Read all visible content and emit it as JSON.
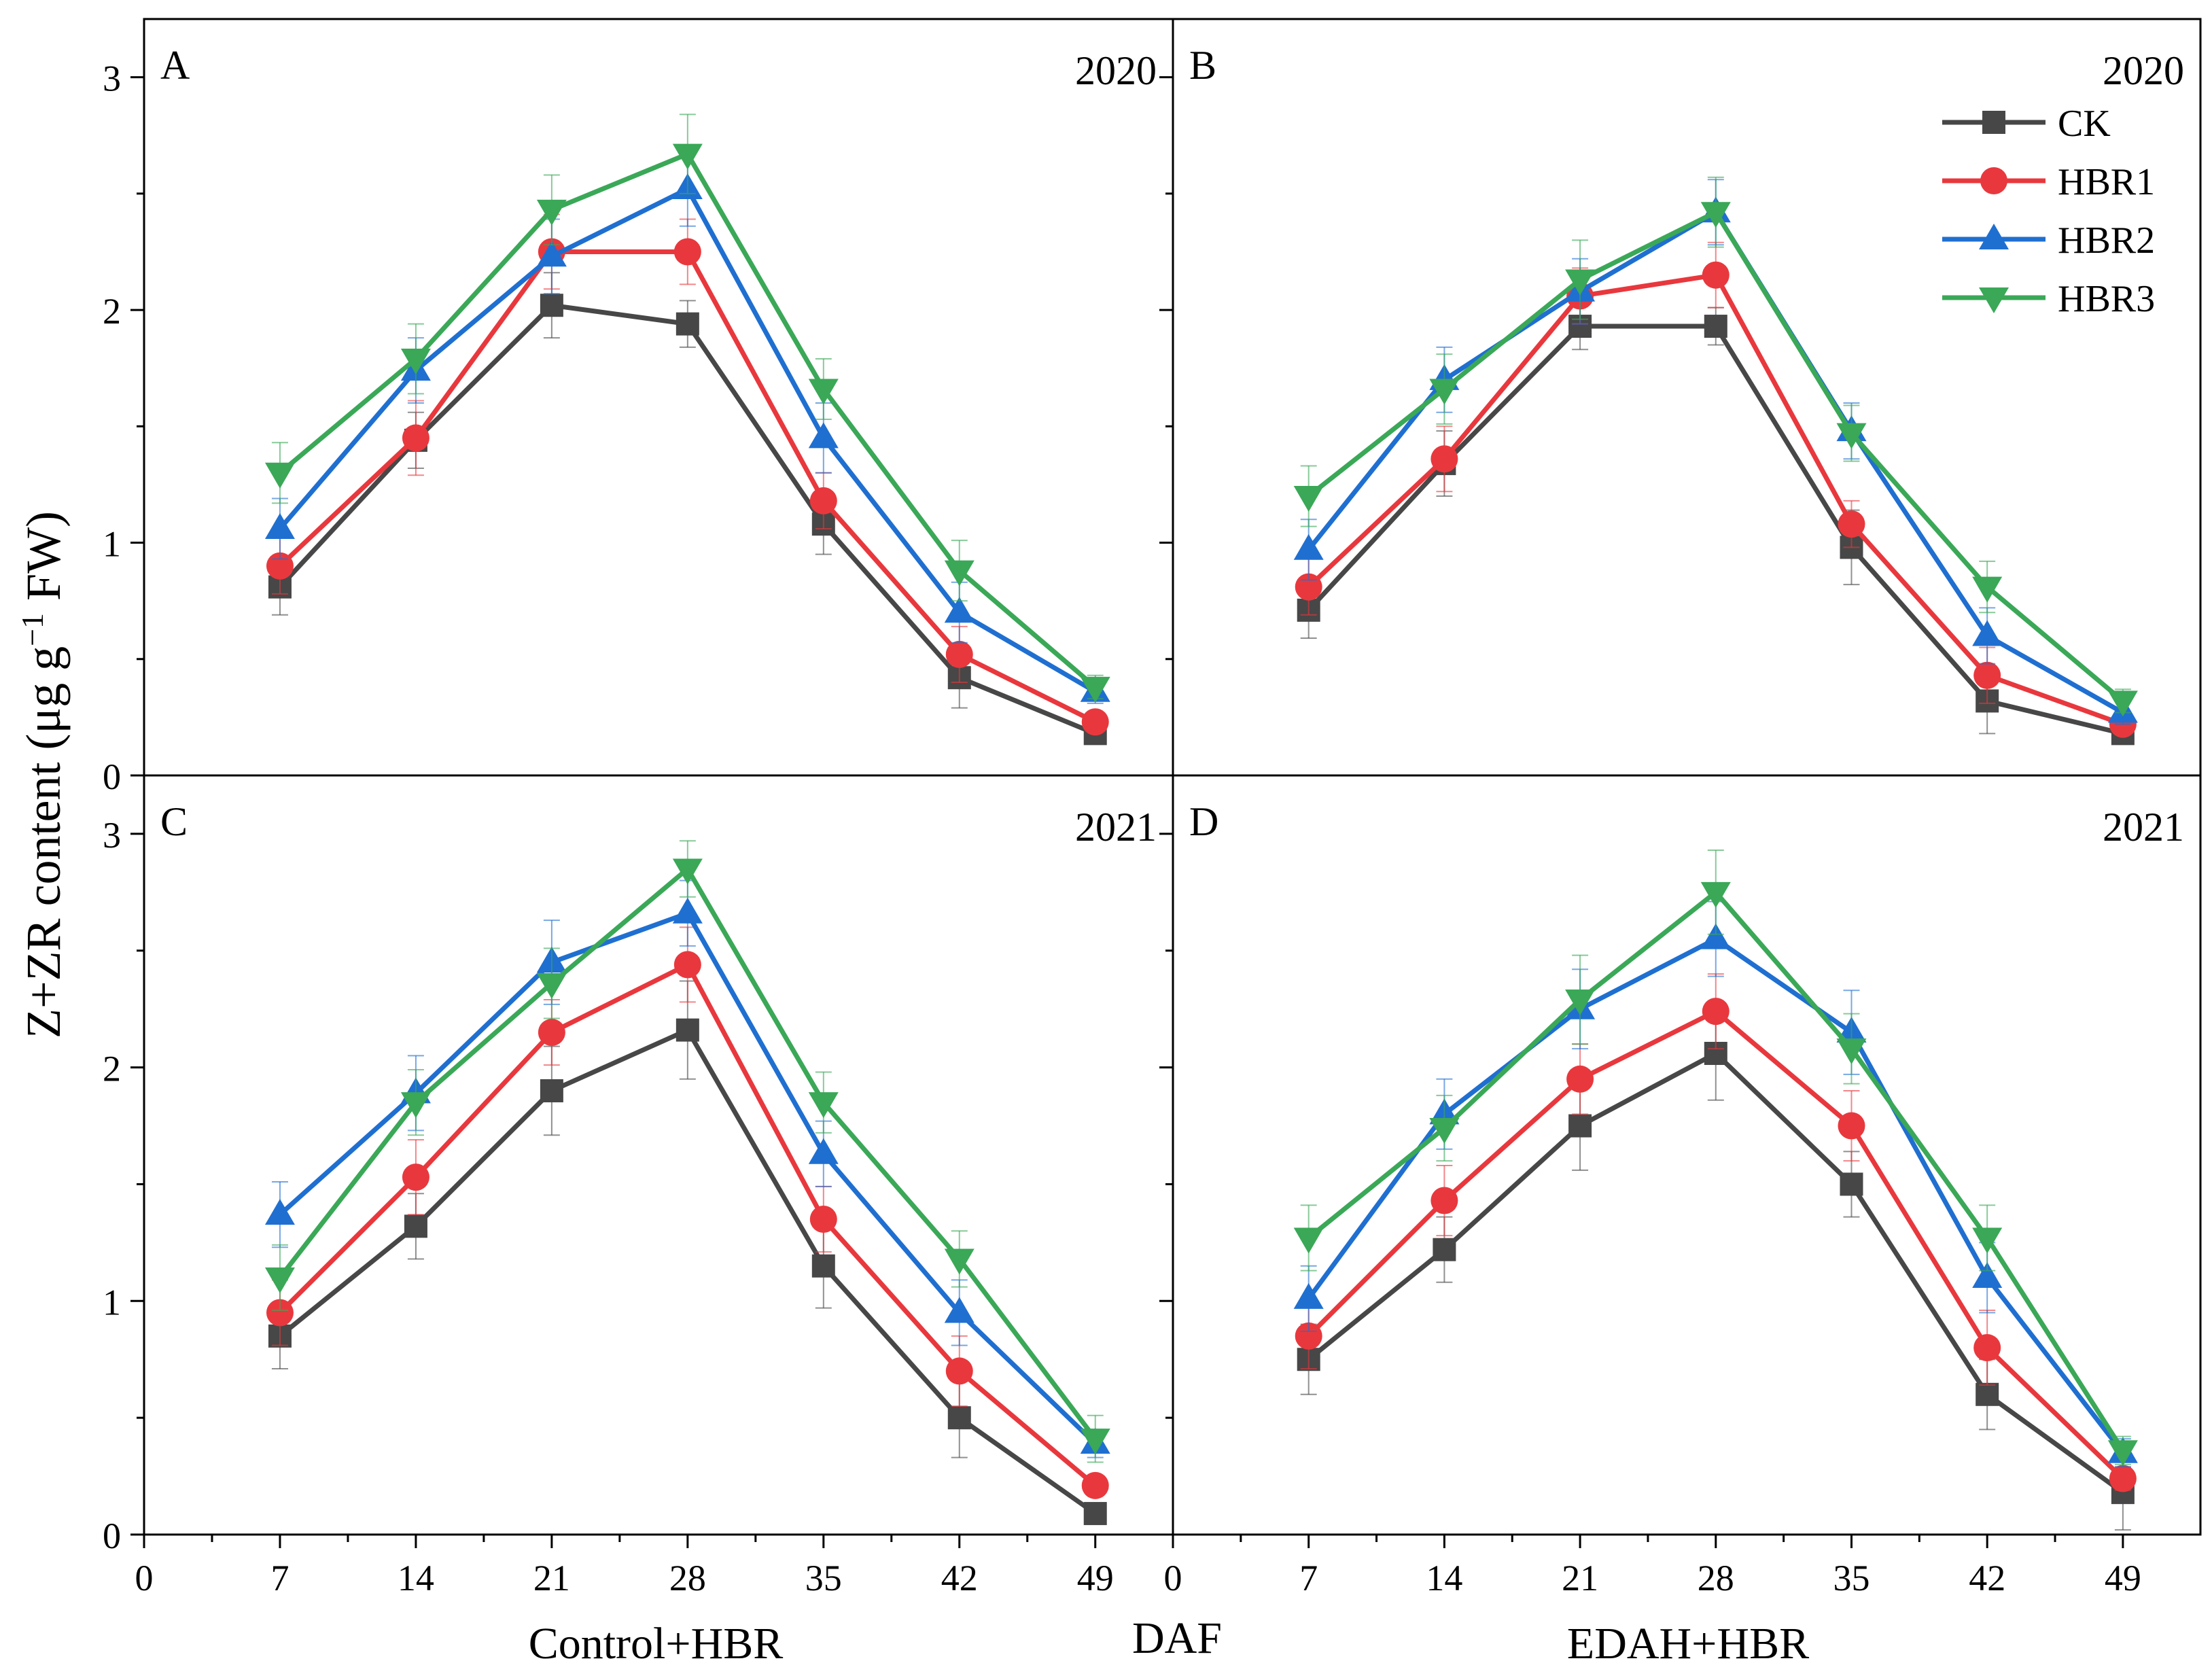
{
  "figure": {
    "ylabel_main": "Z+ZR content (μg g",
    "ylabel_sup": "−1",
    "ylabel_tail": " FW)",
    "xlabel_center": "DAF",
    "xlabel_left": "Control+HBR",
    "xlabel_right": "EDAH+HBR"
  },
  "colors": {
    "CK": "#474747",
    "HBR1": "#e8383d",
    "HBR2": "#1f6fd1",
    "HBR3": "#3aa857"
  },
  "legend": {
    "placement": "top-right of panel B",
    "entries": [
      "CK",
      "HBR1",
      "HBR2",
      "HBR3"
    ]
  },
  "chart_data": [
    {
      "type": "line",
      "panel": "A",
      "year": "2020",
      "x": [
        7,
        14,
        21,
        28,
        35,
        42,
        49
      ],
      "xticks": [
        0,
        7,
        14,
        21,
        28,
        35,
        42,
        49
      ],
      "yticks": [
        0,
        1,
        2,
        3
      ],
      "xlim": [
        0,
        53
      ],
      "ylim": [
        0,
        3.25
      ],
      "series": [
        {
          "name": "CK",
          "marker": "square",
          "values": [
            0.81,
            1.44,
            2.02,
            1.94,
            1.08,
            0.42,
            0.18
          ],
          "errors": [
            0.12,
            0.12,
            0.14,
            0.1,
            0.13,
            0.13,
            0.04
          ]
        },
        {
          "name": "HBR1",
          "marker": "circle",
          "values": [
            0.9,
            1.45,
            2.25,
            2.25,
            1.18,
            0.52,
            0.23
          ],
          "errors": [
            0.12,
            0.16,
            0.16,
            0.14,
            0.12,
            0.12,
            0.04
          ]
        },
        {
          "name": "HBR2",
          "marker": "triangle-up",
          "values": [
            1.06,
            1.74,
            2.23,
            2.52,
            1.45,
            0.7,
            0.36
          ],
          "errors": [
            0.13,
            0.14,
            0.16,
            0.16,
            0.15,
            0.13,
            0.05
          ]
        },
        {
          "name": "HBR3",
          "marker": "triangle-down",
          "values": [
            1.3,
            1.79,
            2.43,
            2.67,
            1.66,
            0.88,
            0.38
          ],
          "errors": [
            0.13,
            0.15,
            0.15,
            0.17,
            0.13,
            0.13,
            0.05
          ]
        }
      ]
    },
    {
      "type": "line",
      "panel": "B",
      "year": "2020",
      "x": [
        7,
        14,
        21,
        28,
        35,
        42,
        49
      ],
      "xticks": [
        0,
        7,
        14,
        21,
        28,
        35,
        42,
        49
      ],
      "yticks": [
        0,
        1,
        2,
        3
      ],
      "xlim": [
        0,
        53
      ],
      "ylim": [
        0,
        3.25
      ],
      "series": [
        {
          "name": "CK",
          "marker": "square",
          "values": [
            0.71,
            1.34,
            1.93,
            1.93,
            0.98,
            0.32,
            0.18
          ],
          "errors": [
            0.12,
            0.14,
            0.1,
            0.08,
            0.16,
            0.14,
            0.04
          ]
        },
        {
          "name": "HBR1",
          "marker": "circle",
          "values": [
            0.81,
            1.36,
            2.06,
            2.15,
            1.08,
            0.43,
            0.22
          ],
          "errors": [
            0.12,
            0.14,
            0.12,
            0.14,
            0.1,
            0.12,
            0.04
          ]
        },
        {
          "name": "HBR2",
          "marker": "triangle-up",
          "values": [
            0.97,
            1.7,
            2.08,
            2.42,
            1.48,
            0.6,
            0.27
          ],
          "errors": [
            0.13,
            0.14,
            0.14,
            0.14,
            0.12,
            0.12,
            0.05
          ]
        },
        {
          "name": "HBR3",
          "marker": "triangle-down",
          "values": [
            1.2,
            1.66,
            2.13,
            2.42,
            1.47,
            0.81,
            0.32
          ],
          "errors": [
            0.13,
            0.15,
            0.17,
            0.15,
            0.12,
            0.11,
            0.05
          ]
        }
      ]
    },
    {
      "type": "line",
      "panel": "C",
      "year": "2021",
      "x": [
        7,
        14,
        21,
        28,
        35,
        42,
        49
      ],
      "xticks": [
        0,
        7,
        14,
        21,
        28,
        35,
        42,
        49
      ],
      "yticks": [
        0,
        1,
        2,
        3
      ],
      "xlim": [
        0,
        53
      ],
      "ylim": [
        0,
        3.25
      ],
      "series": [
        {
          "name": "CK",
          "marker": "square",
          "values": [
            0.85,
            1.32,
            1.9,
            2.16,
            1.15,
            0.5,
            0.09
          ],
          "errors": [
            0.14,
            0.14,
            0.19,
            0.21,
            0.18,
            0.17,
            0.04
          ]
        },
        {
          "name": "HBR1",
          "marker": "circle",
          "values": [
            0.95,
            1.53,
            2.15,
            2.44,
            1.35,
            0.7,
            0.21
          ],
          "errors": [
            0.14,
            0.16,
            0.14,
            0.16,
            0.14,
            0.15,
            0.04
          ]
        },
        {
          "name": "HBR2",
          "marker": "triangle-up",
          "values": [
            1.37,
            1.89,
            2.45,
            2.66,
            1.63,
            0.95,
            0.39
          ],
          "errors": [
            0.14,
            0.16,
            0.18,
            0.14,
            0.14,
            0.14,
            0.06
          ]
        },
        {
          "name": "HBR3",
          "marker": "triangle-down",
          "values": [
            1.1,
            1.85,
            2.36,
            2.85,
            1.85,
            1.18,
            0.41
          ],
          "errors": [
            0.14,
            0.14,
            0.15,
            0.12,
            0.13,
            0.12,
            0.1
          ]
        }
      ]
    },
    {
      "type": "line",
      "panel": "D",
      "year": "2021",
      "x": [
        7,
        14,
        21,
        28,
        35,
        42,
        49
      ],
      "xticks": [
        0,
        7,
        14,
        21,
        28,
        35,
        42,
        49
      ],
      "yticks": [
        0,
        1,
        2,
        3
      ],
      "xlim": [
        0,
        53
      ],
      "ylim": [
        0,
        3.25
      ],
      "series": [
        {
          "name": "CK",
          "marker": "square",
          "values": [
            0.75,
            1.22,
            1.75,
            2.06,
            1.5,
            0.6,
            0.18
          ],
          "errors": [
            0.15,
            0.14,
            0.19,
            0.2,
            0.14,
            0.15,
            0.16
          ]
        },
        {
          "name": "HBR1",
          "marker": "circle",
          "values": [
            0.85,
            1.43,
            1.95,
            2.24,
            1.75,
            0.8,
            0.24
          ],
          "errors": [
            0.14,
            0.15,
            0.15,
            0.16,
            0.15,
            0.16,
            0.05
          ]
        },
        {
          "name": "HBR2",
          "marker": "triangle-up",
          "values": [
            1.01,
            1.8,
            2.25,
            2.55,
            2.15,
            1.1,
            0.35
          ],
          "errors": [
            0.14,
            0.15,
            0.17,
            0.16,
            0.18,
            0.15,
            0.06
          ]
        },
        {
          "name": "HBR3",
          "marker": "triangle-down",
          "values": [
            1.27,
            1.74,
            2.29,
            2.75,
            2.08,
            1.27,
            0.36
          ],
          "errors": [
            0.14,
            0.14,
            0.19,
            0.18,
            0.15,
            0.14,
            0.06
          ]
        }
      ]
    }
  ]
}
